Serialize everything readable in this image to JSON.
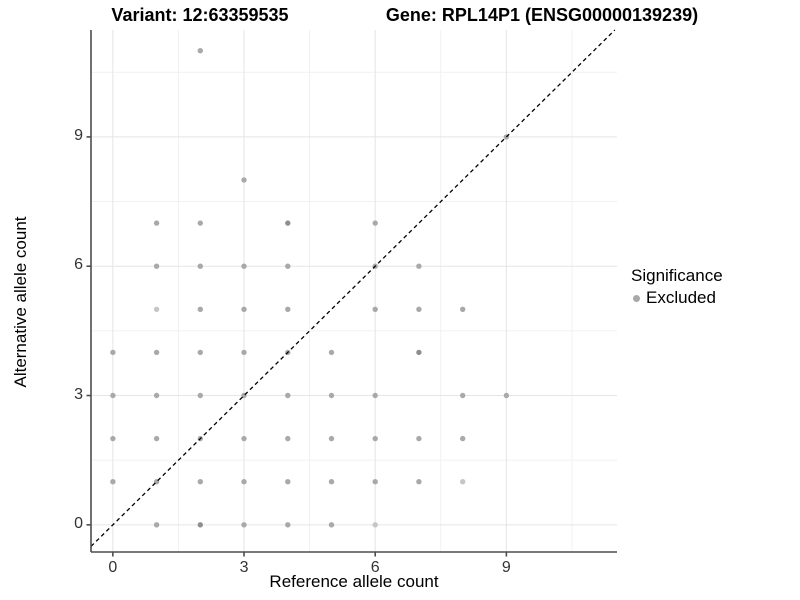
{
  "titles": {
    "variant": "Variant: 12:63359535",
    "gene": "Gene: RPL14P1 (ENSG00000139239)"
  },
  "legend": {
    "title": "Significance",
    "items": [
      {
        "label": "Excluded",
        "color": "#a9a9a9"
      }
    ]
  },
  "style": {
    "point_color": "#a9a9a9",
    "point_light": "#c6c6c6",
    "point_dark": "#8f8f8f",
    "grid_major": "#e5e5e5",
    "grid_minor": "#f1f1f1",
    "axis_color": "#4d4d4d",
    "identity_line_color": "#000000",
    "background": "#ffffff"
  },
  "chart_data": {
    "type": "scatter",
    "title": "",
    "xlabel": "Reference allele count",
    "ylabel": "Alternative allele count",
    "xlim": [
      -0.5,
      11.53
    ],
    "ylim": [
      -0.63,
      11.48
    ],
    "x_major_ticks": [
      0,
      3,
      6,
      9
    ],
    "y_major_ticks": [
      0,
      3,
      6,
      9
    ],
    "x_minor_ticks": [
      1.5,
      4.5,
      7.5,
      10.5
    ],
    "y_minor_ticks": [
      1.5,
      4.5,
      7.5,
      10.5
    ],
    "grid": true,
    "legend_position": "right",
    "identity_line": {
      "slope": 1,
      "intercept": 0,
      "style": "dashed"
    },
    "series": [
      {
        "name": "Excluded",
        "points": [
          [
            1,
            0
          ],
          [
            2,
            0,
            "dark"
          ],
          [
            3,
            0
          ],
          [
            4,
            0
          ],
          [
            5,
            0
          ],
          [
            6,
            0,
            "light"
          ],
          [
            0,
            1
          ],
          [
            1,
            1
          ],
          [
            2,
            1
          ],
          [
            3,
            1
          ],
          [
            4,
            1
          ],
          [
            5,
            1
          ],
          [
            6,
            1
          ],
          [
            7,
            1
          ],
          [
            8,
            1,
            "light"
          ],
          [
            0,
            2
          ],
          [
            1,
            2
          ],
          [
            2,
            2
          ],
          [
            3,
            2
          ],
          [
            4,
            2
          ],
          [
            5,
            2
          ],
          [
            6,
            2
          ],
          [
            7,
            2
          ],
          [
            8,
            2
          ],
          [
            0,
            3
          ],
          [
            1,
            3
          ],
          [
            2,
            3
          ],
          [
            3,
            3
          ],
          [
            4,
            3
          ],
          [
            5,
            3
          ],
          [
            6,
            3
          ],
          [
            8,
            3
          ],
          [
            9,
            3
          ],
          [
            0,
            4
          ],
          [
            1,
            4
          ],
          [
            2,
            4
          ],
          [
            3,
            4
          ],
          [
            4,
            4
          ],
          [
            5,
            4
          ],
          [
            7,
            4,
            "dark"
          ],
          [
            1,
            5,
            "light"
          ],
          [
            2,
            5
          ],
          [
            3,
            5
          ],
          [
            4,
            5
          ],
          [
            6,
            5
          ],
          [
            7,
            5
          ],
          [
            8,
            5
          ],
          [
            1,
            6
          ],
          [
            2,
            6
          ],
          [
            3,
            6
          ],
          [
            4,
            6
          ],
          [
            6,
            6
          ],
          [
            7,
            6
          ],
          [
            1,
            7
          ],
          [
            2,
            7
          ],
          [
            4,
            7,
            "dark"
          ],
          [
            6,
            7
          ],
          [
            3,
            8
          ],
          [
            9,
            9
          ],
          [
            2,
            11
          ]
        ]
      }
    ]
  }
}
